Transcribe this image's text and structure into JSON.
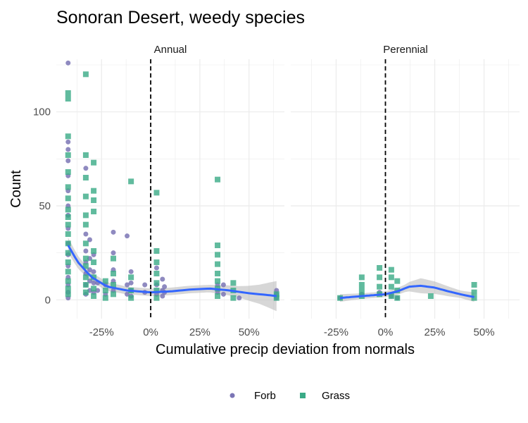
{
  "chart_data": {
    "type": "scatter",
    "title": "Sonoran Desert, weedy species",
    "xlabel": "Cumulative precip deviation from normals",
    "ylabel": "Count",
    "x_unit": "%",
    "xlim": [
      -0.48,
      0.68
    ],
    "ylim": [
      -10,
      128
    ],
    "x_ticks": [
      -0.25,
      0,
      0.25,
      0.5
    ],
    "x_tick_labels": [
      "-25%",
      "0%",
      "25%",
      "50%"
    ],
    "y_ticks": [
      0,
      50,
      100
    ],
    "y_tick_labels": [
      "0",
      "50",
      "100"
    ],
    "reference_line_x": 0,
    "grid": true,
    "legend": {
      "position": "bottom",
      "entries": [
        {
          "name": "Forb",
          "color": "#7b75b5",
          "shape": "circle"
        },
        {
          "name": "Grass",
          "color": "#3aaa86",
          "shape": "square"
        }
      ]
    },
    "colors": {
      "smooth_line": "#3366ff",
      "confidence_band": "#bdbdbd",
      "reference_line": "#000000",
      "grid": "#ebebeb"
    },
    "panels": [
      {
        "strip": "Annual",
        "series": [
          {
            "name": "Forb",
            "points": [
              [
                -0.42,
                126
              ],
              [
                -0.42,
                84
              ],
              [
                -0.42,
                80
              ],
              [
                -0.42,
                74
              ],
              [
                -0.42,
                66
              ],
              [
                -0.42,
                58
              ],
              [
                -0.42,
                50
              ],
              [
                -0.42,
                45
              ],
              [
                -0.42,
                38
              ],
              [
                -0.42,
                30
              ],
              [
                -0.42,
                24
              ],
              [
                -0.42,
                18
              ],
              [
                -0.42,
                12
              ],
              [
                -0.42,
                8
              ],
              [
                -0.42,
                4
              ],
              [
                -0.42,
                1
              ],
              [
                -0.33,
                70
              ],
              [
                -0.33,
                35
              ],
              [
                -0.33,
                26
              ],
              [
                -0.33,
                20
              ],
              [
                -0.33,
                14
              ],
              [
                -0.33,
                8
              ],
              [
                -0.33,
                3
              ],
              [
                -0.31,
                32
              ],
              [
                -0.31,
                22
              ],
              [
                -0.31,
                16
              ],
              [
                -0.31,
                10
              ],
              [
                -0.31,
                5
              ],
              [
                -0.29,
                24
              ],
              [
                -0.29,
                15
              ],
              [
                -0.29,
                9
              ],
              [
                -0.29,
                4
              ],
              [
                -0.27,
                9
              ],
              [
                -0.27,
                5
              ],
              [
                -0.23,
                8
              ],
              [
                -0.23,
                3
              ],
              [
                -0.19,
                36
              ],
              [
                -0.19,
                25
              ],
              [
                -0.19,
                16
              ],
              [
                -0.19,
                10
              ],
              [
                -0.19,
                5
              ],
              [
                -0.12,
                34
              ],
              [
                -0.12,
                8
              ],
              [
                -0.12,
                3
              ],
              [
                -0.1,
                15
              ],
              [
                -0.1,
                9
              ],
              [
                -0.1,
                5
              ],
              [
                -0.1,
                2
              ],
              [
                -0.03,
                8
              ],
              [
                -0.03,
                4
              ],
              [
                0.03,
                17
              ],
              [
                0.03,
                8
              ],
              [
                0.03,
                3
              ],
              [
                0.06,
                11
              ],
              [
                0.06,
                5
              ],
              [
                0.06,
                2
              ],
              [
                0.07,
                7
              ],
              [
                0.07,
                4
              ],
              [
                0.34,
                8
              ],
              [
                0.34,
                4
              ],
              [
                0.37,
                8
              ],
              [
                0.37,
                3
              ],
              [
                0.45,
                1
              ],
              [
                0.64,
                5
              ],
              [
                0.64,
                3
              ],
              [
                0.64,
                1
              ]
            ]
          },
          {
            "name": "Grass",
            "points": [
              [
                -0.42,
                110
              ],
              [
                -0.42,
                107
              ],
              [
                -0.42,
                87
              ],
              [
                -0.42,
                77
              ],
              [
                -0.42,
                68
              ],
              [
                -0.42,
                60
              ],
              [
                -0.42,
                54
              ],
              [
                -0.42,
                48
              ],
              [
                -0.42,
                44
              ],
              [
                -0.42,
                40
              ],
              [
                -0.42,
                35
              ],
              [
                -0.42,
                30
              ],
              [
                -0.42,
                25
              ],
              [
                -0.42,
                20
              ],
              [
                -0.42,
                15
              ],
              [
                -0.42,
                10
              ],
              [
                -0.42,
                6
              ],
              [
                -0.42,
                3
              ],
              [
                -0.33,
                120
              ],
              [
                -0.33,
                77
              ],
              [
                -0.33,
                65
              ],
              [
                -0.33,
                55
              ],
              [
                -0.33,
                45
              ],
              [
                -0.33,
                40
              ],
              [
                -0.33,
                30
              ],
              [
                -0.33,
                22
              ],
              [
                -0.33,
                18
              ],
              [
                -0.33,
                12
              ],
              [
                -0.33,
                8
              ],
              [
                -0.33,
                4
              ],
              [
                -0.29,
                73
              ],
              [
                -0.29,
                58
              ],
              [
                -0.29,
                53
              ],
              [
                -0.29,
                47
              ],
              [
                -0.29,
                26
              ],
              [
                -0.29,
                20
              ],
              [
                -0.29,
                12
              ],
              [
                -0.29,
                6
              ],
              [
                -0.29,
                2
              ],
              [
                -0.23,
                10
              ],
              [
                -0.23,
                5
              ],
              [
                -0.23,
                1
              ],
              [
                -0.19,
                22
              ],
              [
                -0.19,
                14
              ],
              [
                -0.19,
                8
              ],
              [
                -0.19,
                3
              ],
              [
                -0.1,
                63
              ],
              [
                -0.1,
                12
              ],
              [
                -0.1,
                5
              ],
              [
                -0.1,
                1
              ],
              [
                0.03,
                57
              ],
              [
                0.03,
                26
              ],
              [
                0.03,
                20
              ],
              [
                0.03,
                14
              ],
              [
                0.03,
                9
              ],
              [
                0.03,
                5
              ],
              [
                0.03,
                1
              ],
              [
                0.34,
                64
              ],
              [
                0.34,
                29
              ],
              [
                0.34,
                24
              ],
              [
                0.34,
                19
              ],
              [
                0.34,
                14
              ],
              [
                0.34,
                10
              ],
              [
                0.34,
                6
              ],
              [
                0.34,
                2
              ],
              [
                0.42,
                9
              ],
              [
                0.42,
                5
              ],
              [
                0.42,
                1
              ],
              [
                0.64,
                3
              ],
              [
                0.64,
                1
              ]
            ]
          }
        ],
        "smooth": [
          [
            -0.42,
            29
          ],
          [
            -0.37,
            20
          ],
          [
            -0.3,
            12
          ],
          [
            -0.22,
            7
          ],
          [
            -0.12,
            5
          ],
          [
            0,
            4
          ],
          [
            0.1,
            4.5
          ],
          [
            0.2,
            5.5
          ],
          [
            0.3,
            6
          ],
          [
            0.4,
            5
          ],
          [
            0.5,
            3.5
          ],
          [
            0.6,
            2.5
          ],
          [
            0.64,
            2
          ]
        ],
        "band_halfwidth": [
          [
            -0.42,
            4
          ],
          [
            -0.3,
            2.5
          ],
          [
            -0.1,
            2
          ],
          [
            0.1,
            2
          ],
          [
            0.3,
            2
          ],
          [
            0.45,
            3
          ],
          [
            0.55,
            5
          ],
          [
            0.64,
            8
          ]
        ]
      },
      {
        "strip": "Perennial",
        "series": [
          {
            "name": "Forb",
            "points": [
              [
                -0.23,
                1
              ],
              [
                -0.12,
                3
              ],
              [
                -0.03,
                4
              ],
              [
                0.03,
                2
              ],
              [
                0.06,
                1
              ]
            ]
          },
          {
            "name": "Grass",
            "points": [
              [
                -0.23,
                1
              ],
              [
                -0.12,
                12
              ],
              [
                -0.12,
                8
              ],
              [
                -0.12,
                5
              ],
              [
                -0.12,
                2
              ],
              [
                -0.03,
                17
              ],
              [
                -0.03,
                12
              ],
              [
                -0.03,
                7
              ],
              [
                -0.03,
                3
              ],
              [
                0.03,
                16
              ],
              [
                0.03,
                12
              ],
              [
                0.03,
                7
              ],
              [
                0.03,
                2
              ],
              [
                0.06,
                10
              ],
              [
                0.06,
                5
              ],
              [
                0.06,
                1
              ],
              [
                0.23,
                2
              ],
              [
                0.45,
                8
              ],
              [
                0.45,
                4
              ],
              [
                0.45,
                1
              ]
            ]
          }
        ],
        "smooth": [
          [
            -0.23,
            1
          ],
          [
            -0.12,
            2
          ],
          [
            0,
            3
          ],
          [
            0.06,
            4.5
          ],
          [
            0.12,
            7
          ],
          [
            0.18,
            7.5
          ],
          [
            0.25,
            6.5
          ],
          [
            0.32,
            4.5
          ],
          [
            0.4,
            2.5
          ],
          [
            0.45,
            1.5
          ]
        ],
        "band_halfwidth": [
          [
            -0.23,
            2
          ],
          [
            -0.12,
            1.5
          ],
          [
            0,
            1.5
          ],
          [
            0.1,
            2
          ],
          [
            0.18,
            4
          ],
          [
            0.28,
            3
          ],
          [
            0.38,
            2
          ],
          [
            0.45,
            2.5
          ]
        ]
      }
    ]
  }
}
